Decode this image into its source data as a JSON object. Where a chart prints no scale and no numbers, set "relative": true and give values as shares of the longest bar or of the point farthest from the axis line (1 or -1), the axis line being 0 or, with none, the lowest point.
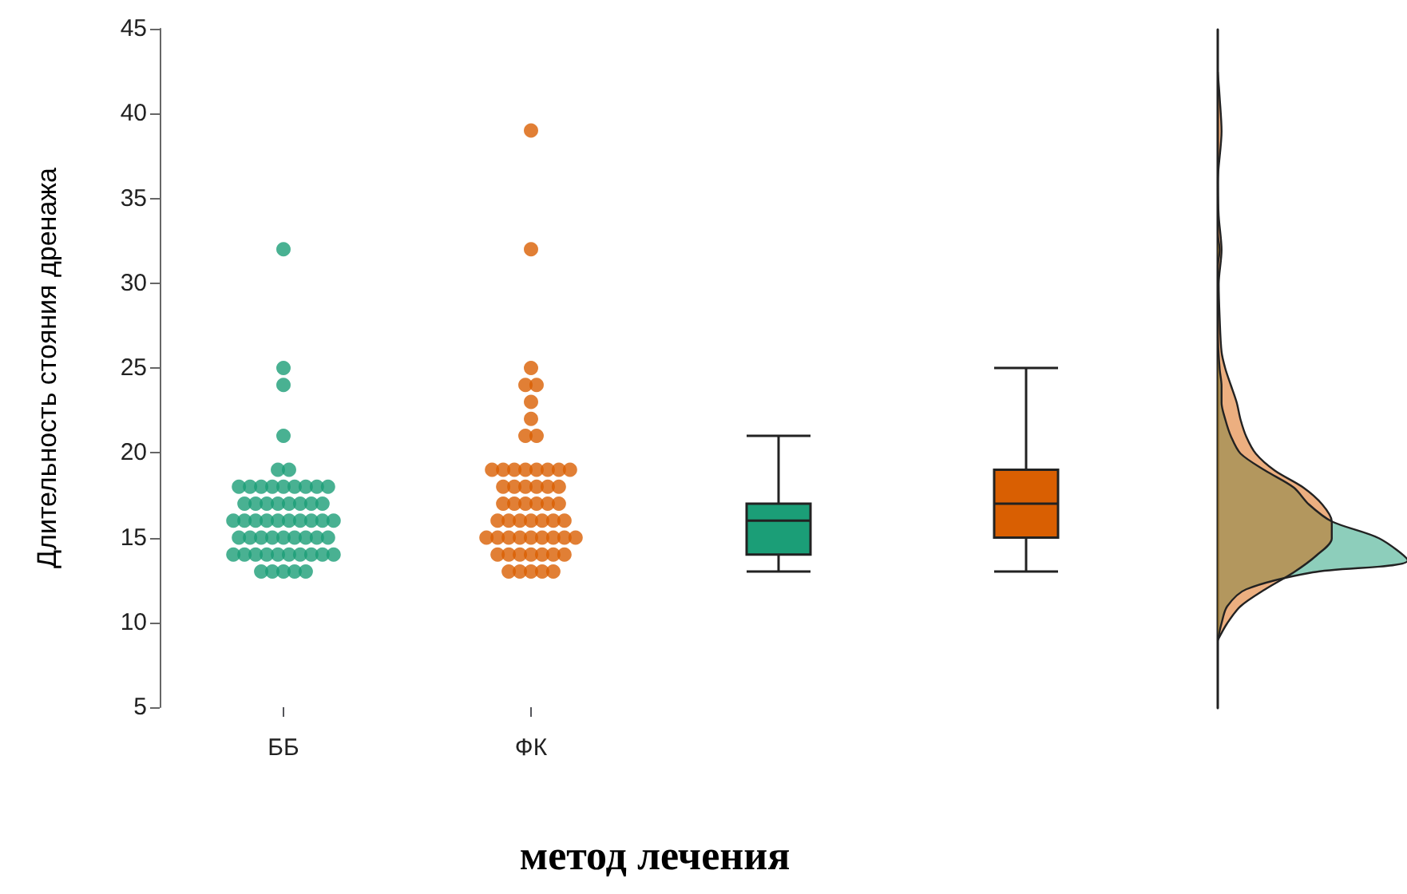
{
  "chart_data": [
    {
      "type": "scatter",
      "xlabel": "метод лечения",
      "ylabel": "Длительность стояния дренажа",
      "categories": [
        "ББ",
        "ФК",
        null,
        null
      ],
      "ylim": [
        5,
        45
      ],
      "yticks": [
        5,
        10,
        15,
        20,
        25,
        30,
        35,
        40,
        45
      ],
      "grid": false,
      "series": [
        {
          "color": "#1b9e77",
          "x": [
            "ББ",
            "ББ",
            "ББ",
            "ББ",
            "ББ",
            "ББ",
            "ББ",
            "ББ",
            "ББ",
            "ББ",
            "ББ",
            "ББ",
            "ББ",
            "ББ",
            "ББ",
            "ББ",
            "ББ",
            "ББ",
            "ББ",
            "ББ",
            "ББ",
            "ББ",
            "ББ",
            "ББ",
            "ББ",
            "ББ",
            "ББ",
            "ББ",
            "ББ",
            "ББ",
            "ББ",
            "ББ",
            "ББ",
            "ББ",
            "ББ",
            "ББ",
            "ББ",
            "ББ",
            "ББ",
            "ББ",
            "ББ",
            "ББ",
            "ББ",
            "ББ",
            "ББ",
            "ББ",
            "ББ",
            "ББ",
            "ББ",
            "ББ",
            "ББ",
            "ББ",
            "ББ",
            "ББ",
            "ББ",
            "ББ",
            "ББ"
          ],
          "values": [
            32,
            25,
            24,
            21,
            19,
            19,
            18,
            18,
            18,
            18,
            18,
            18,
            18,
            18,
            18,
            17,
            17,
            17,
            17,
            17,
            17,
            17,
            17,
            16,
            16,
            16,
            16,
            16,
            16,
            16,
            16,
            16,
            16,
            15,
            15,
            15,
            15,
            15,
            15,
            15,
            15,
            15,
            14,
            14,
            14,
            14,
            14,
            14,
            14,
            14,
            14,
            14,
            13,
            13,
            13,
            13,
            13
          ]
        },
        {
          "color": "#d95f02",
          "x": [
            "ФК",
            "ФК",
            "ФК",
            "ФК",
            "ФК",
            "ФК",
            "ФК",
            "ФК",
            "ФК",
            "ФК",
            "ФК",
            "ФК",
            "ФК",
            "ФК",
            "ФК",
            "ФК",
            "ФК",
            "ФК",
            "ФК",
            "ФК",
            "ФК",
            "ФК",
            "ФК",
            "ФК",
            "ФК",
            "ФК",
            "ФК",
            "ФК",
            "ФК",
            "ФК",
            "ФК",
            "ФК",
            "ФК",
            "ФК",
            "ФК",
            "ФК",
            "ФК",
            "ФК",
            "ФК",
            "ФК",
            "ФК",
            "ФК",
            "ФК",
            "ФК",
            "ФК",
            "ФК",
            "ФК",
            "ФК",
            "ФК",
            "ФК",
            "ФК",
            "ФК",
            "ФК",
            "ФК",
            "ФК",
            "ФК",
            "ФК"
          ],
          "values": [
            39,
            32,
            25,
            24,
            24,
            23,
            22,
            21,
            21,
            19,
            19,
            19,
            19,
            19,
            19,
            19,
            19,
            18,
            18,
            18,
            18,
            18,
            18,
            17,
            17,
            17,
            17,
            17,
            17,
            16,
            16,
            16,
            16,
            16,
            16,
            16,
            15,
            15,
            15,
            15,
            15,
            15,
            15,
            15,
            15,
            14,
            14,
            14,
            14,
            14,
            14,
            14,
            13,
            13,
            13,
            13,
            13
          ]
        },
        {
          "type": "box",
          "color": "#1b9e77",
          "boxes": [
            null,
            null,
            {
              "low": 13,
              "q1": 14,
              "median": 16,
              "q3": 17,
              "high": 21
            },
            null
          ]
        },
        {
          "type": "box",
          "color": "#d95f02",
          "boxes": [
            null,
            null,
            null,
            {
              "low": 13,
              "q1": 15,
              "median": 17,
              "q3": 19,
              "high": 25
            }
          ]
        }
      ]
    },
    {
      "type": "area",
      "relative": true,
      "orientation": "horizontal",
      "ylim": [
        5,
        45
      ],
      "tick_labels": false,
      "series": [
        {
          "color": "#1b9e77",
          "x": [
            9,
            10,
            11,
            12,
            13,
            13.7,
            15,
            16,
            17,
            18,
            19,
            20,
            21,
            22,
            23,
            24,
            25,
            27,
            31,
            32,
            33,
            42
          ],
          "values": [
            0,
            0.02,
            0.05,
            0.15,
            0.5,
            1,
            0.85,
            0.6,
            0.48,
            0.4,
            0.25,
            0.12,
            0.07,
            0.04,
            0.02,
            0.02,
            0.01,
            0,
            0,
            0.01,
            0,
            0
          ]
        },
        {
          "color": "#d95f02",
          "x": [
            9,
            10,
            11,
            12,
            13,
            14,
            15,
            16,
            17,
            18,
            19,
            20,
            21,
            22,
            23,
            24,
            25,
            26,
            28,
            30,
            32,
            34,
            36,
            39,
            41,
            42.5
          ],
          "values": [
            0,
            0.05,
            0.12,
            0.25,
            0.4,
            0.52,
            0.6,
            0.6,
            0.55,
            0.45,
            0.3,
            0.2,
            0.15,
            0.12,
            0.1,
            0.07,
            0.04,
            0.02,
            0.01,
            0.005,
            0.02,
            0.005,
            0,
            0.02,
            0.01,
            0
          ]
        }
      ]
    }
  ]
}
